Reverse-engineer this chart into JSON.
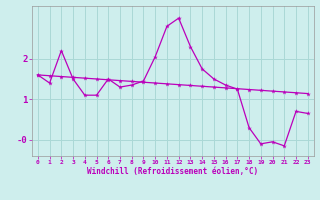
{
  "xlabel": "Windchill (Refroidissement éolien,°C)",
  "background_color": "#ceeeed",
  "grid_color": "#aad8d6",
  "line_color": "#bb00bb",
  "hours": [
    0,
    1,
    2,
    3,
    4,
    5,
    6,
    7,
    8,
    9,
    10,
    11,
    12,
    13,
    14,
    15,
    16,
    17,
    18,
    19,
    20,
    21,
    22,
    23
  ],
  "main_line": [
    1.6,
    1.4,
    2.2,
    1.5,
    1.1,
    1.1,
    1.5,
    1.3,
    1.35,
    1.45,
    2.05,
    2.8,
    3.0,
    2.3,
    1.75,
    1.5,
    1.35,
    1.25,
    0.3,
    -0.1,
    -0.05,
    -0.15,
    0.7,
    0.65
  ],
  "smooth_line": [
    1.6,
    1.58,
    1.56,
    1.54,
    1.52,
    1.5,
    1.48,
    1.46,
    1.44,
    1.42,
    1.4,
    1.38,
    1.36,
    1.34,
    1.32,
    1.3,
    1.28,
    1.26,
    1.24,
    1.22,
    1.2,
    1.18,
    1.16,
    1.14
  ],
  "ylim": [
    -0.4,
    3.3
  ],
  "xlim": [
    -0.5,
    23.5
  ]
}
